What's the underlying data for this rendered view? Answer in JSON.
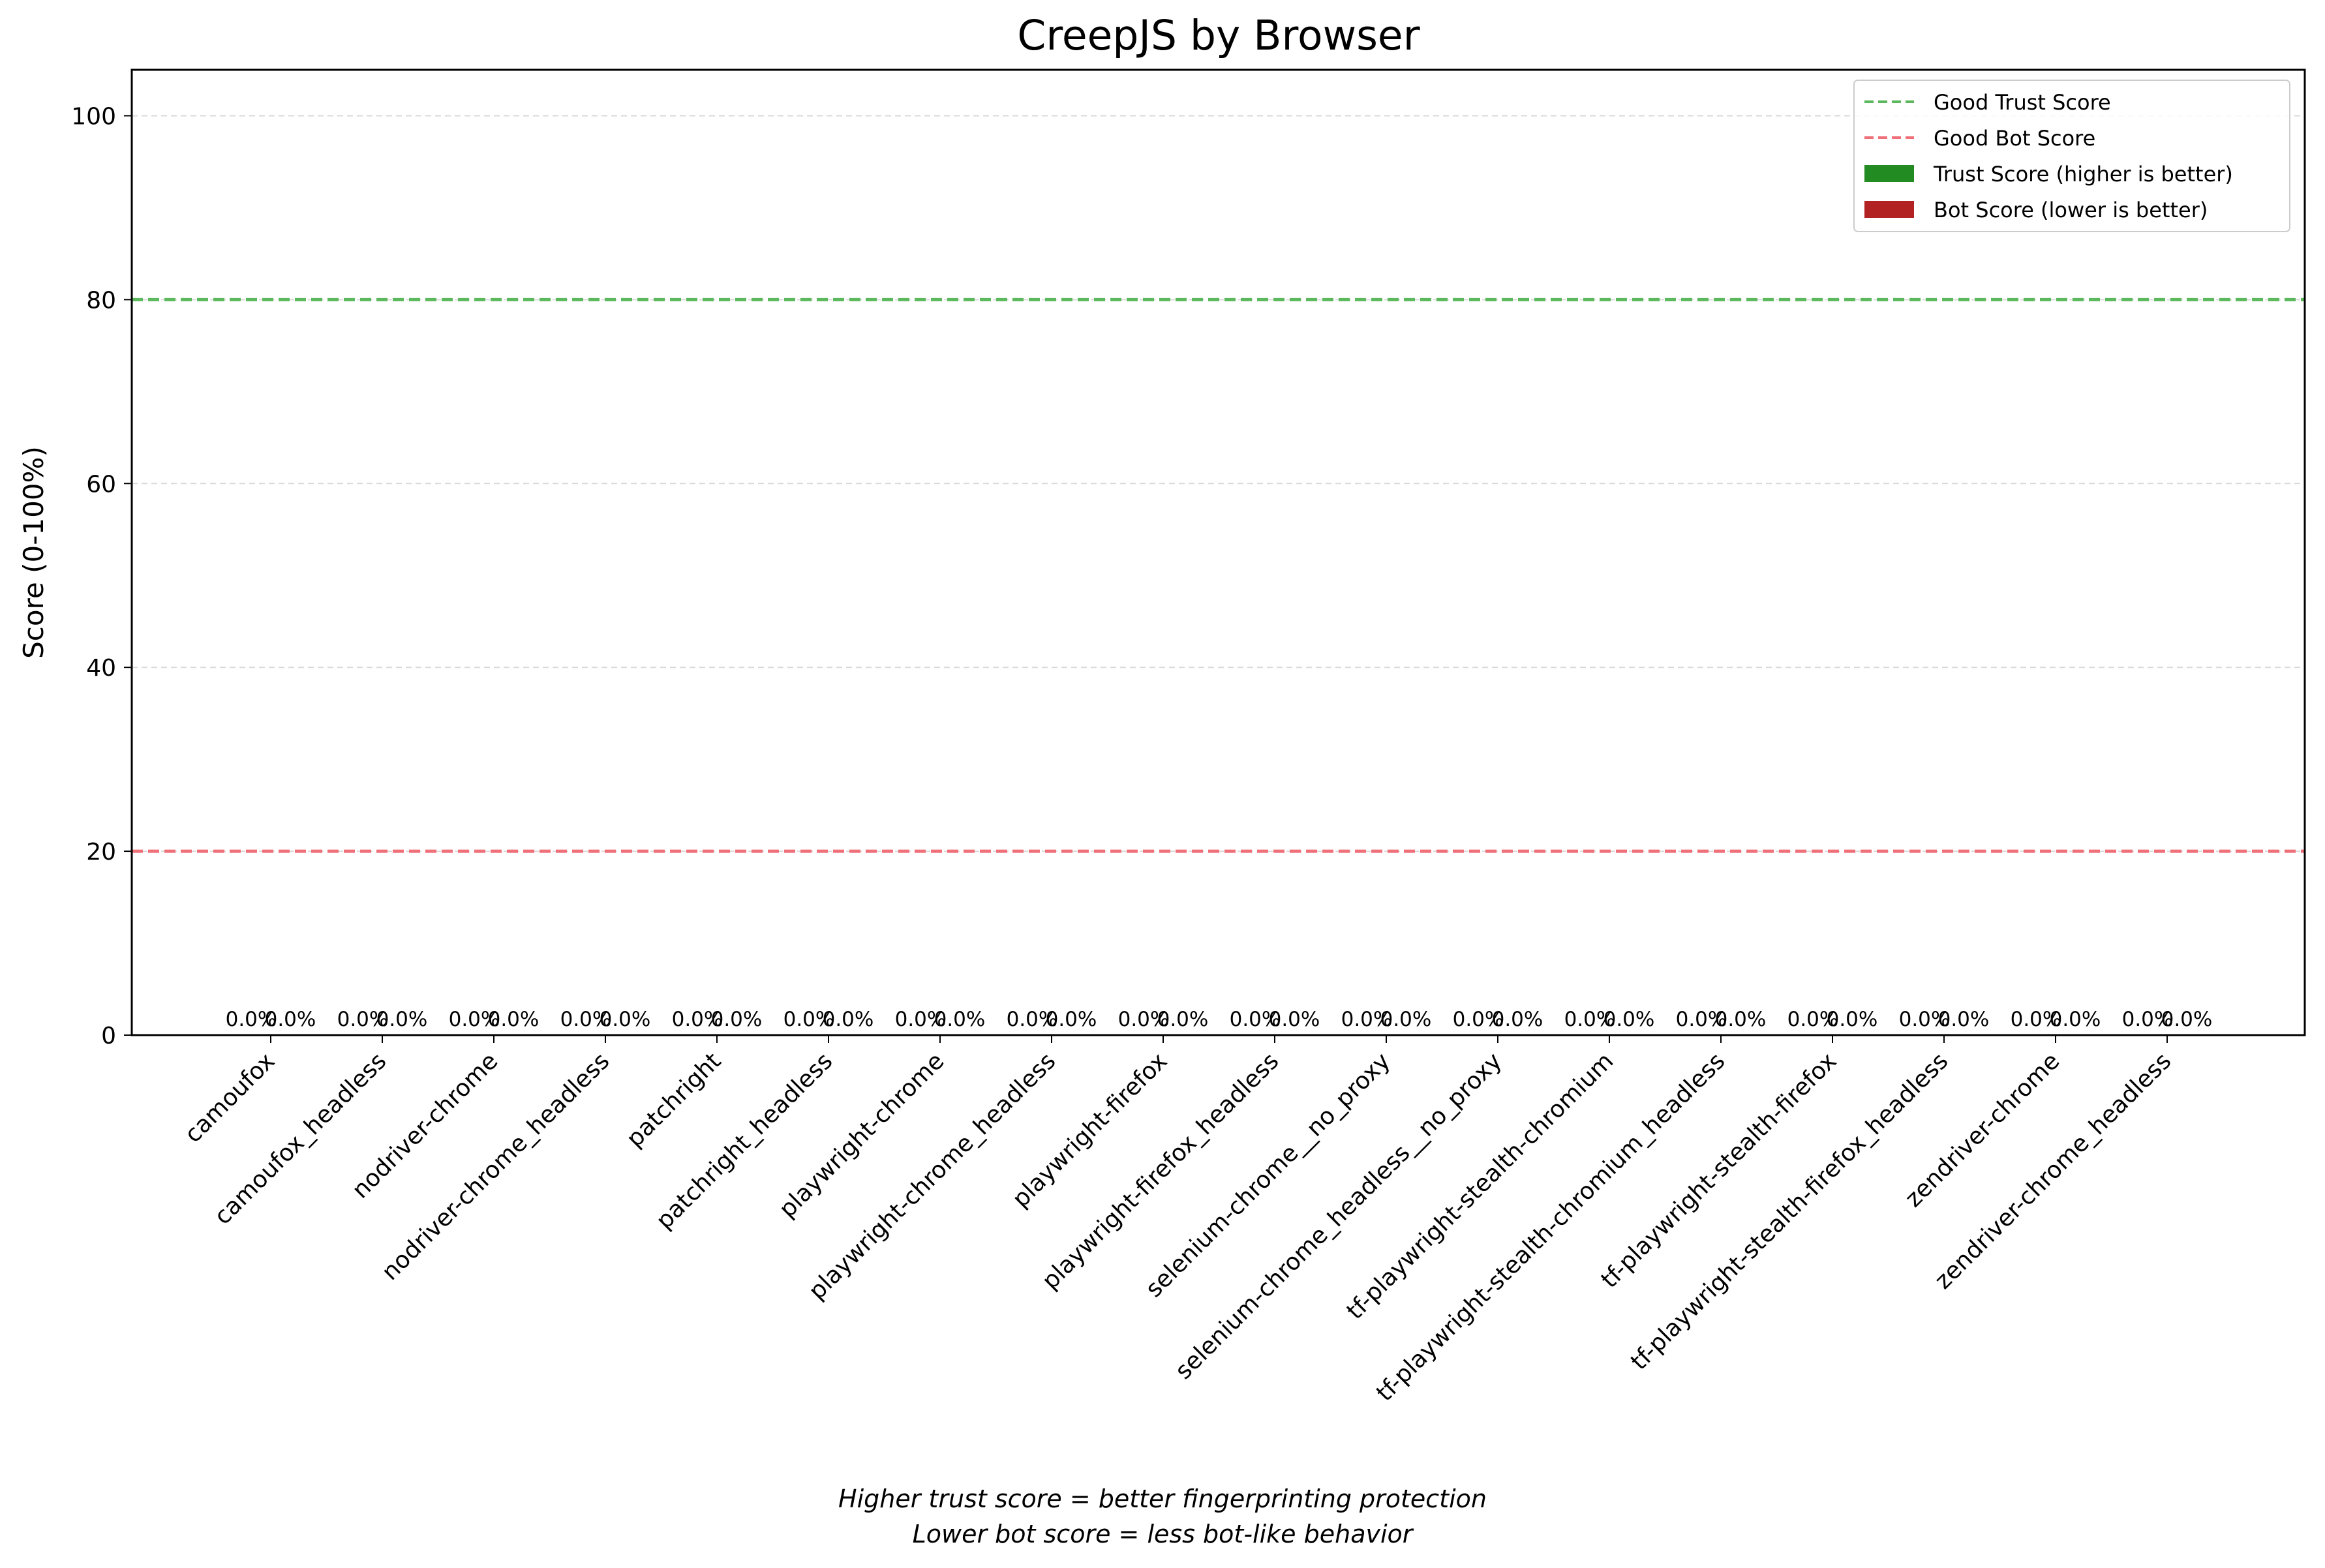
{
  "chart_data": {
    "type": "bar",
    "title": "CreepJS by Browser",
    "xlabel": "",
    "ylabel": "Score (0-100%)",
    "ylim": [
      0,
      105
    ],
    "yticks": [
      0,
      20,
      40,
      60,
      80,
      100
    ],
    "grid": true,
    "legend_position": "top-right",
    "categories": [
      "camoufox",
      "camoufox_headless",
      "nodriver-chrome",
      "nodriver-chrome_headless",
      "patchright",
      "patchright_headless",
      "playwright-chrome",
      "playwright-chrome_headless",
      "playwright-firefox",
      "playwright-firefox_headless",
      "selenium-chrome__no_proxy",
      "selenium-chrome_headless__no_proxy",
      "tf-playwright-stealth-chromium",
      "tf-playwright-stealth-chromium_headless",
      "tf-playwright-stealth-firefox",
      "tf-playwright-stealth-firefox_headless",
      "zendriver-chrome",
      "zendriver-chrome_headless"
    ],
    "series": [
      {
        "name": "Trust Score (higher is better)",
        "color": "#228b22",
        "values": [
          0,
          0,
          0,
          0,
          0,
          0,
          0,
          0,
          0,
          0,
          0,
          0,
          0,
          0,
          0,
          0,
          0,
          0
        ],
        "labels": [
          "0.0%",
          "0.0%",
          "0.0%",
          "0.0%",
          "0.0%",
          "0.0%",
          "0.0%",
          "0.0%",
          "0.0%",
          "0.0%",
          "0.0%",
          "0.0%",
          "0.0%",
          "0.0%",
          "0.0%",
          "0.0%",
          "0.0%",
          "0.0%"
        ]
      },
      {
        "name": "Bot Score (lower is better)",
        "color": "#b22222",
        "values": [
          0,
          0,
          0,
          0,
          0,
          0,
          0,
          0,
          0,
          0,
          0,
          0,
          0,
          0,
          0,
          0,
          0,
          0
        ],
        "labels": [
          "0.0%",
          "0.0%",
          "0.0%",
          "0.0%",
          "0.0%",
          "0.0%",
          "0.0%",
          "0.0%",
          "0.0%",
          "0.0%",
          "0.0%",
          "0.0%",
          "0.0%",
          "0.0%",
          "0.0%",
          "0.0%",
          "0.0%",
          "0.0%"
        ]
      }
    ],
    "reference_lines": [
      {
        "name": "Good Trust Score",
        "y": 80,
        "color": "#5cb85c"
      },
      {
        "name": "Good Bot Score",
        "y": 20,
        "color": "#f0707a"
      }
    ],
    "annotations": [
      "Higher trust score = better fingerprinting protection",
      "Lower bot score = less bot-like behavior"
    ]
  }
}
